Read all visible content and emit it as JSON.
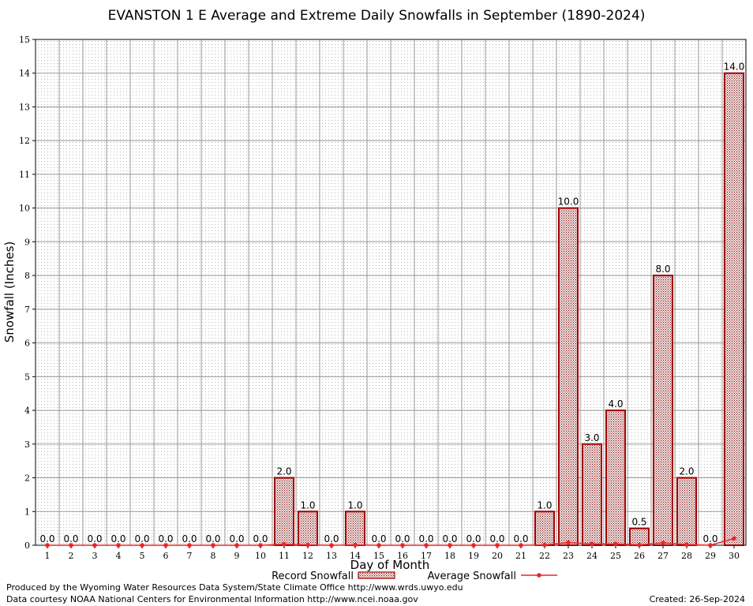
{
  "chart_data": {
    "type": "bar",
    "title": "EVANSTON 1 E Average and Extreme Daily Snowfalls in September (1890-2024)",
    "xlabel": "Day of Month",
    "ylabel": "Snowfall (Inches)",
    "ylim": [
      0,
      15
    ],
    "yticks": [
      "0",
      "1",
      "2",
      "3",
      "4",
      "5",
      "6",
      "7",
      "8",
      "9",
      "10",
      "11",
      "12",
      "13",
      "14",
      "15"
    ],
    "categories": [
      "1",
      "2",
      "3",
      "4",
      "5",
      "6",
      "7",
      "8",
      "9",
      "10",
      "11",
      "12",
      "13",
      "14",
      "15",
      "16",
      "17",
      "18",
      "19",
      "20",
      "21",
      "22",
      "23",
      "24",
      "25",
      "26",
      "27",
      "28",
      "29",
      "30"
    ],
    "series": [
      {
        "name": "Record Snowfall",
        "kind": "bar",
        "color": "#a50000",
        "values": [
          0,
          0,
          0,
          0,
          0,
          0,
          0,
          0,
          0,
          0,
          2,
          1,
          0,
          1,
          0,
          0,
          0,
          0,
          0,
          0,
          0,
          1,
          10,
          3,
          4,
          0.5,
          8,
          2,
          0,
          14
        ],
        "labels": [
          "0.0",
          "0.0",
          "0.0",
          "0.0",
          "0.0",
          "0.0",
          "0.0",
          "0.0",
          "0.0",
          "0.0",
          "2.0",
          "1.0",
          "0.0",
          "1.0",
          "0.0",
          "0.0",
          "0.0",
          "0.0",
          "0.0",
          "0.0",
          "0.0",
          "1.0",
          "10.0",
          "3.0",
          "4.0",
          "0.5",
          "8.0",
          "2.0",
          "0.0",
          "14.0"
        ]
      },
      {
        "name": "Average Snowfall",
        "kind": "line",
        "color": "#e8262b",
        "values": [
          0,
          0,
          0,
          0,
          0,
          0,
          0,
          0,
          0,
          0,
          0.03,
          0.01,
          0,
          0.01,
          0,
          0,
          0,
          0,
          0,
          0,
          0,
          0.01,
          0.08,
          0.04,
          0.04,
          0.01,
          0.07,
          0.02,
          0,
          0.2
        ]
      }
    ],
    "grid": true,
    "legend_position": "bottom-center"
  },
  "footer": {
    "produced_by": "Produced by the Wyoming Water Resources Data System/State Climate Office http://www.wrds.uwyo.edu",
    "courtesy": "Data courtesy NOAA National Centers for Environmental Information http://www.ncei.noaa.gov",
    "created": "Created:  26-Sep-2024"
  }
}
